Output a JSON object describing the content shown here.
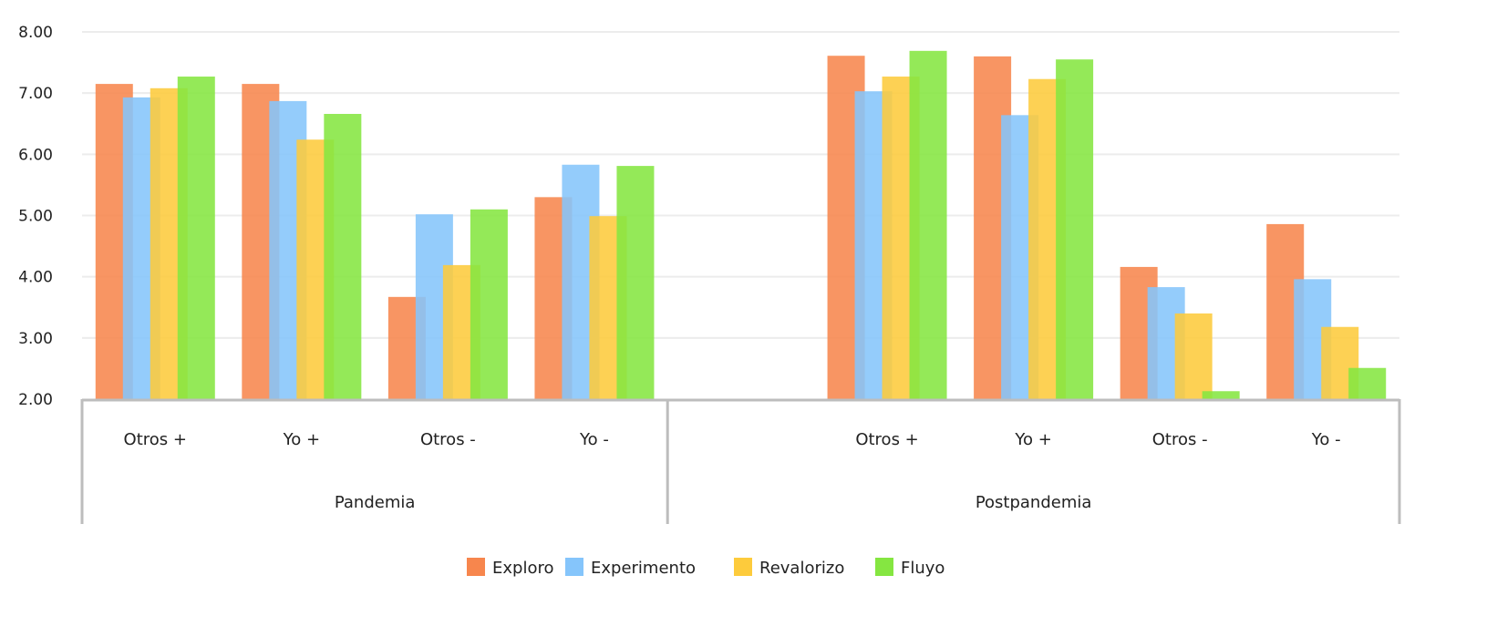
{
  "chart_data": {
    "type": "bar",
    "title": "",
    "xlabel": "",
    "ylabel": "",
    "ylim": [
      2,
      8
    ],
    "yticks": [
      "2.00",
      "3.00",
      "4.00",
      "5.00",
      "6.00",
      "7.00",
      "8.00"
    ],
    "grid": true,
    "legend_position": "bottom",
    "groups": [
      {
        "name": "Pandemia",
        "categories": [
          "Otros +",
          "Yo +",
          "Otros -",
          "Yo -"
        ]
      },
      {
        "name": "Postpandemia",
        "categories": [
          "",
          "Otros +",
          "Yo +",
          "Otros -",
          "Yo -"
        ]
      }
    ],
    "categories": [
      "Otros +",
      "Yo +",
      "Otros -",
      "Yo -",
      "",
      "Otros +",
      "Yo +",
      "Otros -",
      "Yo -"
    ],
    "series": [
      {
        "name": "Exploro",
        "color": "#f7864d",
        "values": [
          7.15,
          7.15,
          3.67,
          5.3,
          null,
          7.61,
          7.6,
          4.16,
          4.86
        ]
      },
      {
        "name": "Experimento",
        "color": "#85c5fb",
        "values": [
          6.93,
          6.87,
          5.02,
          5.83,
          null,
          7.03,
          6.64,
          3.83,
          3.96
        ]
      },
      {
        "name": "Revalorizo",
        "color": "#fdcb3c",
        "values": [
          7.08,
          6.24,
          4.19,
          4.99,
          null,
          7.27,
          7.23,
          3.4,
          3.18
        ]
      },
      {
        "name": "Fluyo",
        "color": "#85e641",
        "values": [
          7.27,
          6.66,
          5.1,
          5.81,
          null,
          7.69,
          7.55,
          2.13,
          2.51
        ]
      }
    ]
  }
}
